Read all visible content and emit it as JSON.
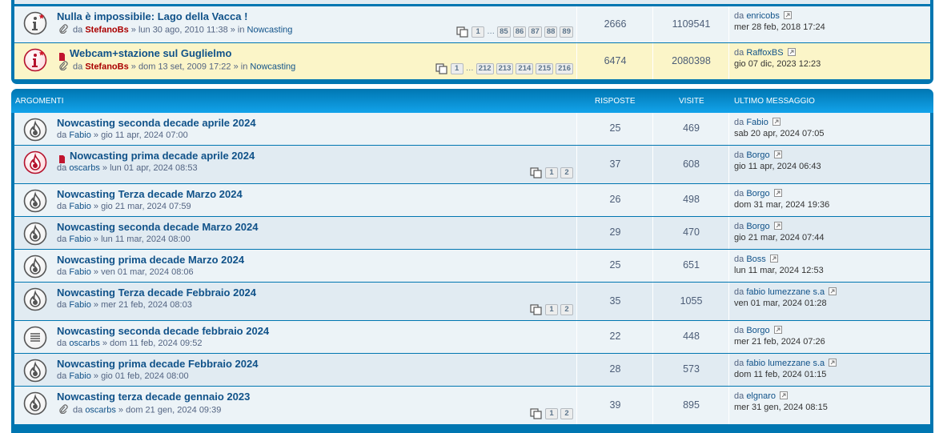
{
  "announcements": [
    {
      "title": "Nulla è impossibile: Lago della Vacca !",
      "icon": "announce",
      "unread": false,
      "attachment": true,
      "meta": {
        "prefix": "da",
        "author": "StefanoBs",
        "rest": "» lun 30 ago, 2010 11:38 » in",
        "forum": "Nowcasting"
      },
      "pages": [
        "1",
        "…",
        "85",
        "86",
        "87",
        "88",
        "89"
      ],
      "replies": 2666,
      "views": 1109541,
      "last": {
        "prefix": "da",
        "author": "enricobs",
        "date": "mer 28 feb, 2018 17:24"
      }
    },
    {
      "title": "Webcam+stazione sul Guglielmo",
      "icon": "announce-hot",
      "unread": true,
      "attachment": true,
      "highlight": "#fbf5c8",
      "meta": {
        "prefix": "da",
        "author": "StefanoBs",
        "rest": "» dom 13 set, 2009 17:22 » in",
        "forum": "Nowcasting"
      },
      "pages": [
        "1",
        "…",
        "212",
        "213",
        "214",
        "215",
        "216"
      ],
      "replies": 6474,
      "views": 2080398,
      "last": {
        "prefix": "da",
        "author": "RaffoxBS",
        "date": "gio 07 dic, 2023 12:23"
      }
    }
  ],
  "header": {
    "topics": "ARGOMENTI",
    "replies": "RISPOSTE",
    "views": "VISITE",
    "last": "ULTIMO MESSAGGIO"
  },
  "topics": [
    {
      "title": "Nowcasting seconda decade aprile 2024",
      "icon": "hot",
      "unread": false,
      "attachment": false,
      "meta": {
        "prefix": "da",
        "author": "Fabio",
        "rest": "» gio 11 apr, 2024 07:00"
      },
      "pages": [],
      "replies": 25,
      "views": 469,
      "last": {
        "prefix": "da",
        "author": "Fabio",
        "date": "sab 20 apr, 2024 07:05"
      }
    },
    {
      "title": "Nowcasting prima decade aprile 2024",
      "icon": "hot-new",
      "unread": true,
      "attachment": false,
      "meta": {
        "prefix": "da",
        "author": "oscarbs",
        "rest": "» lun 01 apr, 2024 08:53"
      },
      "pages": [
        "1",
        "2"
      ],
      "replies": 37,
      "views": 608,
      "last": {
        "prefix": "da",
        "author": "Borgo",
        "date": "gio 11 apr, 2024 06:43"
      }
    },
    {
      "title": "Nowcasting Terza decade Marzo 2024",
      "icon": "hot",
      "unread": false,
      "attachment": false,
      "meta": {
        "prefix": "da",
        "author": "Fabio",
        "rest": "» gio 21 mar, 2024 07:59"
      },
      "pages": [],
      "replies": 26,
      "views": 498,
      "last": {
        "prefix": "da",
        "author": "Borgo",
        "date": "dom 31 mar, 2024 19:36"
      }
    },
    {
      "title": "Nowcasting seconda decade Marzo 2024",
      "icon": "hot",
      "unread": false,
      "attachment": false,
      "meta": {
        "prefix": "da",
        "author": "Fabio",
        "rest": "» lun 11 mar, 2024 08:00"
      },
      "pages": [],
      "replies": 29,
      "views": 470,
      "last": {
        "prefix": "da",
        "author": "Borgo",
        "date": "gio 21 mar, 2024 07:44"
      }
    },
    {
      "title": "Nowcasting prima decade Marzo 2024",
      "icon": "hot",
      "unread": false,
      "attachment": false,
      "meta": {
        "prefix": "da",
        "author": "Fabio",
        "rest": "» ven 01 mar, 2024 08:06"
      },
      "pages": [],
      "replies": 25,
      "views": 651,
      "last": {
        "prefix": "da",
        "author": "Boss",
        "date": "lun 11 mar, 2024 12:53"
      }
    },
    {
      "title": "Nowcasting Terza decade Febbraio 2024",
      "icon": "hot",
      "unread": false,
      "attachment": false,
      "meta": {
        "prefix": "da",
        "author": "Fabio",
        "rest": "» mer 21 feb, 2024 08:03"
      },
      "pages": [
        "1",
        "2"
      ],
      "replies": 35,
      "views": 1055,
      "last": {
        "prefix": "da",
        "author": "fabio lumezzane s.a",
        "date": "ven 01 mar, 2024 01:28"
      }
    },
    {
      "title": "Nowcasting seconda decade febbraio 2024",
      "icon": "normal",
      "unread": false,
      "attachment": false,
      "meta": {
        "prefix": "da",
        "author": "oscarbs",
        "rest": "» dom 11 feb, 2024 09:52"
      },
      "pages": [],
      "replies": 22,
      "views": 448,
      "last": {
        "prefix": "da",
        "author": "Borgo",
        "date": "mer 21 feb, 2024 07:26"
      }
    },
    {
      "title": "Nowcasting prima decade Febbraio 2024",
      "icon": "hot",
      "unread": false,
      "attachment": false,
      "meta": {
        "prefix": "da",
        "author": "Fabio",
        "rest": "» gio 01 feb, 2024 08:00"
      },
      "pages": [],
      "replies": 28,
      "views": 573,
      "last": {
        "prefix": "da",
        "author": "fabio lumezzane s.a",
        "date": "dom 11 feb, 2024 01:15"
      }
    },
    {
      "title": "Nowcasting terza decade gennaio 2023",
      "icon": "hot",
      "unread": false,
      "attachment": true,
      "meta": {
        "prefix": "da",
        "author": "oscarbs",
        "rest": "» dom 21 gen, 2024 09:39"
      },
      "pages": [
        "1",
        "2"
      ],
      "replies": 39,
      "views": 895,
      "last": {
        "prefix": "da",
        "author": "elgnaro",
        "date": "mer 31 gen, 2024 08:15"
      }
    }
  ]
}
